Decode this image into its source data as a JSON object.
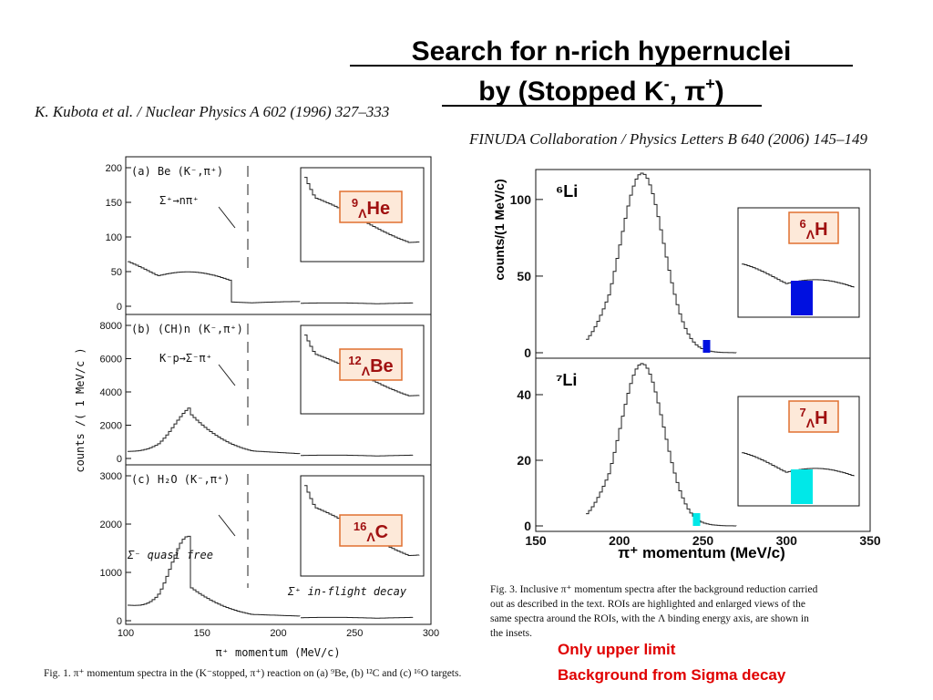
{
  "title": {
    "line1": "Search for n-rich hypernuclei",
    "line2_a": "by (Stopped K",
    "line2_b": "-",
    "line2_c": ", π",
    "line2_d": "+",
    "line2_e": ")"
  },
  "left": {
    "reference": "K. Kubota et al. / Nuclear Physics A 602 (1996) 327–333",
    "y_label": "counts /( 1 MeV/c )",
    "x_label": "π⁺ momentum (MeV/c)",
    "xticks": [
      100,
      150,
      200,
      250,
      300
    ],
    "panels": [
      {
        "label": "(a) Be (K⁻,π⁺)",
        "yticks": [
          0,
          50,
          100,
          150,
          200
        ],
        "annotation": "Σ⁺→nπ⁺",
        "inset": {
          "mass": "9",
          "lambda": "Λ",
          "element": "He"
        }
      },
      {
        "label": "(b) (CH)n (K⁻,π⁺)",
        "yticks": [
          0,
          2000,
          4000,
          6000,
          8000
        ],
        "annotation": "K⁻p→Σ⁻π⁺",
        "inset": {
          "mass": "12",
          "lambda": "Λ",
          "element": "Be"
        }
      },
      {
        "label": "(c) H₂O (K⁻,π⁺)",
        "yticks": [
          0,
          1000,
          2000,
          3000
        ],
        "annotation": "Σ⁻ quasi free",
        "annotation2": "Σ⁺ in-flight decay",
        "inset": {
          "mass": "16",
          "lambda": "Λ",
          "element": "C"
        }
      }
    ],
    "caption": "Fig. 1. π⁺ momentum spectra in the (K⁻stopped, π⁺) reaction on (a) ⁹Be, (b) ¹²C and (c) ¹⁶O targets."
  },
  "right": {
    "reference": "FINUDA Collaboration / Physics Letters B 640 (2006) 145–149",
    "y_label": "counts/(1 MeV/c)",
    "x_label": "π⁺ momentum (MeV/c)",
    "xticks": [
      150,
      200,
      250,
      300,
      350
    ],
    "panels": [
      {
        "label": "⁶Li",
        "yticks": [
          0,
          50,
          100
        ],
        "inset": {
          "mass": "6",
          "lambda": "Λ",
          "element": "H"
        }
      },
      {
        "label": "⁷Li",
        "yticks": [
          0,
          20,
          40
        ],
        "inset": {
          "mass": "7",
          "lambda": "Λ",
          "element": "H"
        }
      }
    ],
    "caption": [
      "Fig. 3. Inclusive π⁺ momentum spectra after the background reduction carried",
      "out as described in the text. ROIs are highlighted and enlarged views of the",
      "same spectra around the ROIs, with the Λ binding energy axis, are shown in",
      "the insets."
    ]
  },
  "notes": [
    "Only upper limit",
    "Background from Sigma decay"
  ]
}
